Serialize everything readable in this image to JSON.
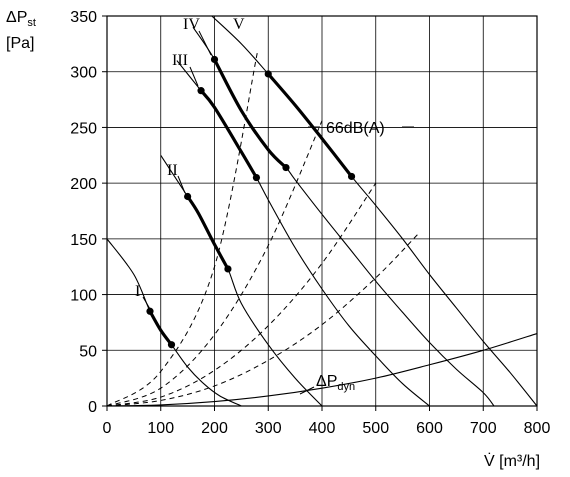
{
  "chart_data": {
    "type": "line",
    "title": "",
    "ylabel": {
      "prefix": "ΔP",
      "sub": "st",
      "unit": "[Pa]"
    },
    "xlabel": "V̇ [m³/h]",
    "xlim": [
      0,
      800
    ],
    "ylim": [
      0,
      350
    ],
    "x_ticks": [
      0,
      100,
      200,
      300,
      400,
      500,
      600,
      700,
      800
    ],
    "y_ticks": [
      0,
      50,
      100,
      150,
      200,
      250,
      300,
      350
    ],
    "grid": true,
    "fan_curves": [
      {
        "name": "I",
        "x": [
          0,
          50,
          80,
          100,
          120,
          150,
          180,
          210,
          250
        ],
        "y": [
          150,
          118,
          85,
          68,
          55,
          35,
          20,
          9,
          0
        ],
        "operating_range": {
          "x": [
            80,
            100,
            120
          ],
          "y": [
            85,
            68,
            55
          ]
        }
      },
      {
        "name": "II",
        "x": [
          100,
          150,
          170,
          200,
          225,
          250,
          300,
          350,
          400
        ],
        "y": [
          225,
          188,
          173,
          145,
          123,
          92,
          55,
          25,
          0
        ],
        "operating_range": {
          "x": [
            150,
            170,
            200,
            225
          ],
          "y": [
            188,
            173,
            145,
            123
          ]
        }
      },
      {
        "name": "III",
        "x": [
          130,
          175,
          200,
          250,
          278,
          300,
          350,
          400,
          450,
          500,
          550,
          600
        ],
        "y": [
          310,
          283,
          268,
          228,
          205,
          185,
          142,
          105,
          72,
          45,
          20,
          0
        ],
        "operating_range": {
          "x": [
            175,
            200,
            250,
            278
          ],
          "y": [
            283,
            268,
            228,
            205
          ]
        }
      },
      {
        "name": "IV",
        "x": [
          160,
          200,
          250,
          300,
          333,
          350,
          400,
          450,
          500,
          550,
          600,
          650,
          700,
          720
        ],
        "y": [
          340,
          311,
          265,
          230,
          214,
          203,
          172,
          142,
          112,
          84,
          57,
          33,
          12,
          0
        ],
        "operating_range": {
          "x": [
            200,
            250,
            300,
            333
          ],
          "y": [
            311,
            265,
            230,
            214
          ]
        }
      },
      {
        "name": "V",
        "x": [
          195,
          250,
          300,
          350,
          400,
          455,
          500,
          550,
          600,
          650,
          700,
          750,
          800
        ],
        "y": [
          350,
          325,
          298,
          270,
          240,
          206,
          180,
          150,
          118,
          88,
          58,
          30,
          0
        ],
        "operating_range": {
          "x": [
            300,
            350,
            400,
            455
          ],
          "y": [
            298,
            270,
            240,
            206
          ]
        }
      }
    ],
    "system_curves": [
      {
        "x": [
          0,
          100,
          200,
          280
        ],
        "y": [
          0,
          31,
          125,
          318
        ]
      },
      {
        "x": [
          0,
          100,
          200,
          300,
          400
        ],
        "y": [
          0,
          16,
          64,
          144,
          256
        ]
      },
      {
        "x": [
          0,
          100,
          200,
          300,
          400,
          500
        ],
        "y": [
          0,
          8,
          32,
          72,
          128,
          200
        ]
      },
      {
        "x": [
          0,
          100,
          200,
          300,
          400,
          500,
          580
        ],
        "y": [
          0,
          5,
          18,
          41,
          73,
          115,
          155
        ]
      }
    ],
    "dynamic_pressure_curve": {
      "x": [
        0,
        100,
        200,
        300,
        400,
        500,
        600,
        700,
        800
      ],
      "y": [
        0,
        1,
        4,
        9,
        16,
        25,
        37,
        50,
        65
      ]
    },
    "labels": {
      "noise": "66dB(A)",
      "dyn_prefix": "ΔP",
      "dyn_sub": "dyn"
    }
  }
}
